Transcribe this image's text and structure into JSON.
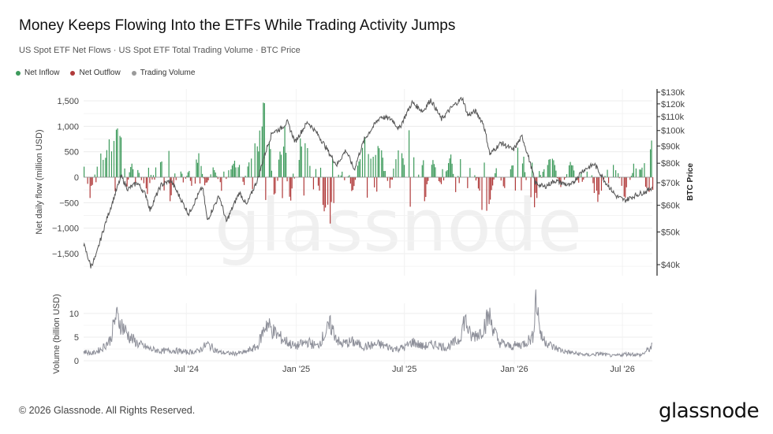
{
  "header": {
    "title": "Money Keeps Flowing Into the ETFs While Trading Activity Jumps",
    "subtitle": "US Spot ETF Net Flows · US Spot ETF Total Trading Volume · BTC Price"
  },
  "legend": [
    {
      "label": "Net Inflow",
      "color": "#3d9a5b"
    },
    {
      "label": "Net Outflow",
      "color": "#b03a3a"
    },
    {
      "label": "Trading Volume",
      "color": "#9a9a9a"
    }
  ],
  "watermark": "glassnode",
  "footer": {
    "copyright": "© 2026 Glassnode. All Rights Reserved.",
    "brand": "glassnode"
  },
  "colors": {
    "inflow": "#3d9a5b",
    "outflow": "#b03a3a",
    "price": "#555555",
    "volume": "#8d8f99",
    "grid": "#ececec"
  },
  "chart_data": [
    {
      "type": "bar",
      "name": "flows",
      "ylabel": "Net daily flow (million USD)",
      "y2label": "BTC Price",
      "ylim": [
        -1800,
        1600
      ],
      "y_ticks": [
        1500,
        1000,
        500,
        0,
        -500,
        -1000,
        -1500
      ],
      "y_tick_labels": [
        "1,500",
        "1,000",
        "500",
        "0",
        "−500",
        "−1,000",
        "−1,500"
      ],
      "y2_ticks": [
        130000,
        120000,
        110000,
        100000,
        90000,
        80000,
        70000,
        60000,
        50000,
        40000
      ],
      "y2_tick_labels": [
        "$130k",
        "$120k",
        "$110k",
        "$100k",
        "$90k",
        "$80k",
        "$70k",
        "$60k",
        "$50k",
        "$40k"
      ],
      "y2lim": [
        37000,
        135000
      ],
      "y2_scale": "log",
      "xlim": [
        "2024-01-11",
        "2026-08-20"
      ],
      "grid": true,
      "flow_points": [
        [
          "2024-01-11",
          300
        ],
        [
          "2024-01-20",
          -450
        ],
        [
          "2024-02-01",
          250
        ],
        [
          "2024-02-15",
          600
        ],
        [
          "2024-02-28",
          700
        ],
        [
          "2024-03-12",
          1050
        ],
        [
          "2024-03-20",
          -650
        ],
        [
          "2024-03-28",
          300
        ],
        [
          "2024-04-10",
          150
        ],
        [
          "2024-04-25",
          -400
        ],
        [
          "2024-05-10",
          200
        ],
        [
          "2024-05-25",
          450
        ],
        [
          "2024-06-05",
          850
        ],
        [
          "2024-06-15",
          -350
        ],
        [
          "2024-06-25",
          -150
        ],
        [
          "2024-07-10",
          300
        ],
        [
          "2024-07-20",
          500
        ],
        [
          "2024-08-01",
          -200
        ],
        [
          "2024-08-15",
          200
        ],
        [
          "2024-08-30",
          -300
        ],
        [
          "2024-09-12",
          250
        ],
        [
          "2024-09-25",
          350
        ],
        [
          "2024-10-05",
          -250
        ],
        [
          "2024-10-15",
          550
        ],
        [
          "2024-10-28",
          850
        ],
        [
          "2024-11-07",
          1380
        ],
        [
          "2024-11-15",
          900
        ],
        [
          "2024-11-25",
          -450
        ],
        [
          "2024-12-05",
          750
        ],
        [
          "2024-12-12",
          1100
        ],
        [
          "2024-12-20",
          -650
        ],
        [
          "2025-01-05",
          600
        ],
        [
          "2025-01-17",
          1050
        ],
        [
          "2025-01-28",
          -350
        ],
        [
          "2025-02-10",
          -300
        ],
        [
          "2025-02-25",
          -1200
        ],
        [
          "2025-03-05",
          -500
        ],
        [
          "2025-03-20",
          250
        ],
        [
          "2025-04-05",
          -350
        ],
        [
          "2025-04-22",
          900
        ],
        [
          "2025-05-05",
          600
        ],
        [
          "2025-05-20",
          650
        ],
        [
          "2025-06-05",
          -300
        ],
        [
          "2025-06-15",
          500
        ],
        [
          "2025-06-30",
          400
        ],
        [
          "2025-07-10",
          1150
        ],
        [
          "2025-07-20",
          500
        ],
        [
          "2025-08-01",
          -800
        ],
        [
          "2025-08-15",
          450
        ],
        [
          "2025-09-01",
          -300
        ],
        [
          "2025-09-15",
          550
        ],
        [
          "2025-09-25",
          -400
        ],
        [
          "2025-10-06",
          1200
        ],
        [
          "2025-10-15",
          -500
        ],
        [
          "2025-10-28",
          150
        ],
        [
          "2025-11-05",
          -550
        ],
        [
          "2025-11-15",
          -800
        ],
        [
          "2025-12-01",
          200
        ],
        [
          "2025-12-15",
          -250
        ],
        [
          "2026-01-05",
          600
        ],
        [
          "2026-01-15",
          500
        ],
        [
          "2026-01-25",
          -700
        ],
        [
          "2026-02-05",
          -500
        ],
        [
          "2026-02-20",
          300
        ],
        [
          "2026-03-05",
          400
        ],
        [
          "2026-03-20",
          -300
        ],
        [
          "2026-04-05",
          350
        ],
        [
          "2026-04-20",
          -250
        ],
        [
          "2026-05-05",
          200
        ],
        [
          "2026-05-20",
          -600
        ],
        [
          "2026-06-05",
          250
        ],
        [
          "2026-06-20",
          200
        ],
        [
          "2026-07-05",
          -450
        ],
        [
          "2026-07-20",
          300
        ],
        [
          "2026-08-01",
          200
        ],
        [
          "2026-08-10",
          450
        ],
        [
          "2026-08-18",
          650
        ]
      ],
      "btc_price_points": [
        [
          "2024-01-11",
          46000
        ],
        [
          "2024-01-23",
          39500
        ],
        [
          "2024-02-01",
          42500
        ],
        [
          "2024-02-15",
          52000
        ],
        [
          "2024-02-28",
          61000
        ],
        [
          "2024-03-14",
          73000
        ],
        [
          "2024-03-25",
          67000
        ],
        [
          "2024-04-10",
          70000
        ],
        [
          "2024-04-25",
          64000
        ],
        [
          "2024-05-01",
          58000
        ],
        [
          "2024-05-20",
          69000
        ],
        [
          "2024-06-05",
          71000
        ],
        [
          "2024-06-25",
          61000
        ],
        [
          "2024-07-05",
          56500
        ],
        [
          "2024-07-28",
          68000
        ],
        [
          "2024-08-05",
          54000
        ],
        [
          "2024-08-25",
          64000
        ],
        [
          "2024-09-06",
          53500
        ],
        [
          "2024-09-28",
          65500
        ],
        [
          "2024-10-10",
          60000
        ],
        [
          "2024-10-29",
          72000
        ],
        [
          "2024-11-12",
          88000
        ],
        [
          "2024-11-22",
          99000
        ],
        [
          "2024-12-05",
          101000
        ],
        [
          "2024-12-17",
          106000
        ],
        [
          "2024-12-30",
          92500
        ],
        [
          "2025-01-20",
          106000
        ],
        [
          "2025-02-05",
          98000
        ],
        [
          "2025-02-28",
          84000
        ],
        [
          "2025-03-10",
          79000
        ],
        [
          "2025-03-25",
          87500
        ],
        [
          "2025-04-08",
          76500
        ],
        [
          "2025-04-25",
          94000
        ],
        [
          "2025-05-22",
          110000
        ],
        [
          "2025-06-10",
          108000
        ],
        [
          "2025-06-22",
          101000
        ],
        [
          "2025-07-14",
          121000
        ],
        [
          "2025-08-01",
          114000
        ],
        [
          "2025-08-14",
          123500
        ],
        [
          "2025-09-01",
          108000
        ],
        [
          "2025-09-18",
          117000
        ],
        [
          "2025-10-06",
          125000
        ],
        [
          "2025-10-15",
          111000
        ],
        [
          "2025-10-28",
          114000
        ],
        [
          "2025-11-10",
          105000
        ],
        [
          "2025-11-21",
          85000
        ],
        [
          "2025-12-10",
          92000
        ],
        [
          "2025-12-30",
          87500
        ],
        [
          "2026-01-14",
          96000
        ],
        [
          "2026-02-05",
          70000
        ],
        [
          "2026-02-20",
          68000
        ],
        [
          "2026-03-10",
          71000
        ],
        [
          "2026-04-05",
          68500
        ],
        [
          "2026-04-25",
          76000
        ],
        [
          "2026-05-15",
          79500
        ],
        [
          "2026-06-01",
          71000
        ],
        [
          "2026-06-20",
          64000
        ],
        [
          "2026-07-05",
          62000
        ],
        [
          "2026-07-25",
          64500
        ],
        [
          "2026-08-10",
          66000
        ],
        [
          "2026-08-20",
          68000
        ]
      ]
    },
    {
      "type": "line",
      "name": "volume",
      "ylabel": "Volume (billion USD)",
      "ylim": [
        0,
        13.5
      ],
      "y_ticks": [
        10,
        5,
        0
      ],
      "y_tick_labels": [
        "10",
        "5",
        "0"
      ],
      "x_tick_labels": [
        "Jul '24",
        "Jan '25",
        "Jul '25",
        "Jan '26",
        "Jul '26"
      ],
      "x_ticks": [
        "2024-07-01",
        "2025-01-01",
        "2025-07-01",
        "2026-01-01",
        "2026-07-01"
      ],
      "xlim": [
        "2024-01-11",
        "2026-08-20"
      ],
      "volume_points": [
        [
          "2024-01-11",
          2.0
        ],
        [
          "2024-01-25",
          1.5
        ],
        [
          "2024-02-10",
          2.5
        ],
        [
          "2024-02-25",
          4.5
        ],
        [
          "2024-03-05",
          9.5
        ],
        [
          "2024-03-15",
          7.5
        ],
        [
          "2024-03-28",
          5.0
        ],
        [
          "2024-04-12",
          3.5
        ],
        [
          "2024-05-01",
          2.5
        ],
        [
          "2024-05-20",
          2.0
        ],
        [
          "2024-06-10",
          2.2
        ],
        [
          "2024-07-01",
          1.8
        ],
        [
          "2024-07-20",
          2.0
        ],
        [
          "2024-08-05",
          3.5
        ],
        [
          "2024-08-25",
          1.8
        ],
        [
          "2024-09-15",
          1.5
        ],
        [
          "2024-10-05",
          1.7
        ],
        [
          "2024-10-28",
          3.0
        ],
        [
          "2024-11-12",
          8.0
        ],
        [
          "2024-11-25",
          6.0
        ],
        [
          "2024-12-10",
          4.5
        ],
        [
          "2024-12-30",
          3.0
        ],
        [
          "2025-01-20",
          4.0
        ],
        [
          "2025-02-05",
          3.0
        ],
        [
          "2025-02-27",
          7.5
        ],
        [
          "2025-03-15",
          3.5
        ],
        [
          "2025-04-05",
          4.0
        ],
        [
          "2025-04-25",
          3.0
        ],
        [
          "2025-05-20",
          3.5
        ],
        [
          "2025-06-15",
          2.5
        ],
        [
          "2025-07-01",
          2.8
        ],
        [
          "2025-07-15",
          4.0
        ],
        [
          "2025-08-01",
          3.0
        ],
        [
          "2025-08-20",
          3.5
        ],
        [
          "2025-09-10",
          2.8
        ],
        [
          "2025-10-01",
          4.5
        ],
        [
          "2025-10-10",
          9.0
        ],
        [
          "2025-10-20",
          5.0
        ],
        [
          "2025-11-05",
          6.0
        ],
        [
          "2025-11-20",
          9.5
        ],
        [
          "2025-12-05",
          4.0
        ],
        [
          "2025-12-25",
          3.0
        ],
        [
          "2026-01-15",
          3.5
        ],
        [
          "2026-02-01",
          5.0
        ],
        [
          "2026-02-06",
          13.5
        ],
        [
          "2026-02-15",
          5.0
        ],
        [
          "2026-03-05",
          3.0
        ],
        [
          "2026-03-25",
          2.0
        ],
        [
          "2026-04-15",
          1.5
        ],
        [
          "2026-05-05",
          1.2
        ],
        [
          "2026-05-25",
          1.5
        ],
        [
          "2026-06-15",
          1.0
        ],
        [
          "2026-07-10",
          1.5
        ],
        [
          "2026-08-01",
          1.2
        ],
        [
          "2026-08-10",
          2.0
        ],
        [
          "2026-08-20",
          3.0
        ]
      ]
    }
  ]
}
